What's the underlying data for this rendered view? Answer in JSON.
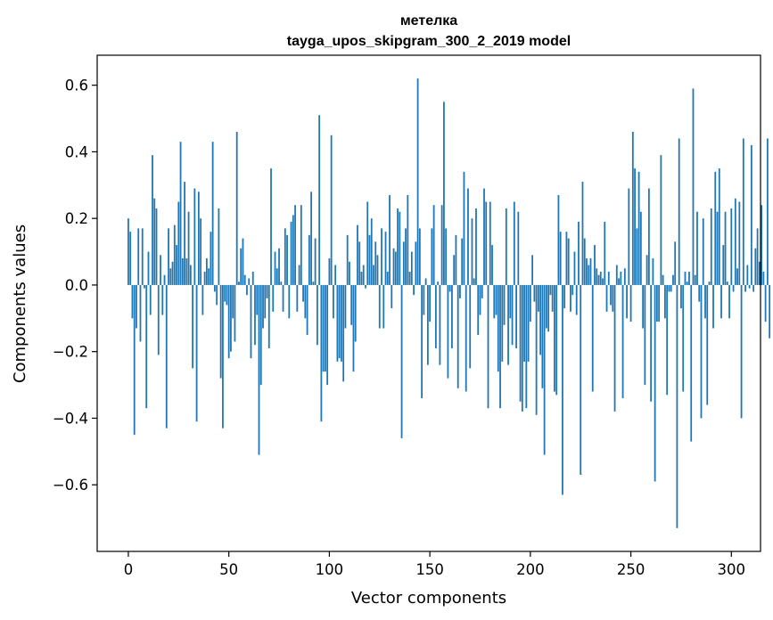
{
  "chart_data": {
    "type": "bar",
    "title": "метелка",
    "subtitle": "tayga_upos_skipgram_300_2_2019 model",
    "xlabel": "Vector components",
    "ylabel": "Components values",
    "xlim": [
      -15.5,
      314.5
    ],
    "ylim": [
      -0.8,
      0.69
    ],
    "x_ticks": [
      0,
      50,
      100,
      150,
      200,
      250,
      300
    ],
    "y_ticks": [
      -0.6,
      -0.4,
      -0.2,
      0.0,
      0.2,
      0.4,
      0.6
    ],
    "y_tick_labels": [
      "−0.6",
      "−0.4",
      "−0.2",
      "0.0",
      "0.2",
      "0.4",
      "0.6"
    ],
    "grid": false,
    "bar_color": "#1f77b4",
    "values": [
      0.2,
      0.16,
      -0.1,
      -0.45,
      -0.13,
      0.17,
      -0.17,
      0.17,
      -0.01,
      -0.37,
      0.1,
      -0.09,
      0.39,
      0.26,
      0.23,
      -0.21,
      0.09,
      -0.09,
      0.03,
      -0.43,
      0.17,
      0.05,
      0.07,
      0.18,
      0.12,
      0.25,
      0.43,
      0.08,
      0.31,
      0.08,
      0.22,
      0.06,
      -0.25,
      0.29,
      -0.41,
      0.28,
      0.2,
      -0.09,
      0.04,
      0.08,
      0.05,
      0.16,
      0.43,
      -0.02,
      -0.06,
      0.23,
      -0.28,
      -0.43,
      -0.05,
      -0.06,
      -0.22,
      -0.2,
      -0.1,
      -0.17,
      0.46,
      0.01,
      0.11,
      0.14,
      0.03,
      -0.03,
      0.02,
      -0.22,
      0.04,
      -0.18,
      -0.09,
      -0.51,
      -0.3,
      -0.13,
      -0.1,
      -0.04,
      -0.19,
      0.35,
      -0.08,
      0.1,
      0.05,
      0.11,
      0.01,
      -0.08,
      0.17,
      0.15,
      -0.1,
      0.19,
      0.21,
      0.24,
      -0.08,
      0.06,
      0.24,
      -0.05,
      -0.1,
      -0.15,
      0.15,
      0.28,
      0.01,
      0.14,
      -0.18,
      0.51,
      -0.41,
      -0.26,
      -0.26,
      -0.3,
      0.08,
      0.45,
      -0.1,
      0.06,
      -0.23,
      -0.22,
      -0.23,
      -0.29,
      -0.13,
      0.15,
      0.07,
      -0.12,
      -0.26,
      -0.17,
      0.18,
      0.13,
      0.04,
      0.06,
      -0.01,
      0.25,
      0.15,
      0.2,
      0.06,
      0.13,
      0.09,
      -0.13,
      0.17,
      -0.13,
      0.16,
      0.04,
      0.27,
      -0.07,
      0.11,
      0.1,
      0.23,
      0.22,
      -0.46,
      0.13,
      0.17,
      0.27,
      0.04,
      0.1,
      -0.03,
      0.13,
      0.62,
      0.17,
      -0.34,
      -0.09,
      0.02,
      -0.24,
      -0.11,
      0.17,
      0.24,
      -0.19,
      0.01,
      -0.24,
      0.24,
      0.55,
      0.17,
      -0.28,
      -0.02,
      -0.19,
      0.09,
      0.15,
      -0.31,
      -0.04,
      0.14,
      0.34,
      -0.32,
      0.29,
      -0.25,
      0.2,
      0.02,
      0.23,
      -0.15,
      -0.09,
      -0.04,
      0.29,
      0.25,
      -0.37,
      0.25,
      0.12,
      -0.1,
      -0.09,
      -0.26,
      -0.37,
      -0.23,
      -0.12,
      0.23,
      -0.24,
      -0.1,
      -0.18,
      0.25,
      -0.19,
      0.22,
      -0.35,
      -0.38,
      -0.23,
      -0.37,
      -0.23,
      -0.11,
      0.09,
      -0.05,
      -0.39,
      -0.08,
      -0.21,
      -0.31,
      -0.51,
      -0.13,
      -0.14,
      -0.03,
      -0.08,
      -0.32,
      -0.33,
      0.27,
      0.16,
      -0.63,
      -0.07,
      0.16,
      0.14,
      -0.08,
      -0.03,
      0.1,
      -0.09,
      0.19,
      -0.57,
      0.31,
      0.14,
      0.08,
      0.06,
      0.08,
      -0.32,
      0.12,
      0.05,
      0.03,
      0.04,
      0.02,
      0.19,
      -0.08,
      0.04,
      -0.06,
      -0.08,
      -0.38,
      0.06,
      0.02,
      0.04,
      -0.34,
      0.05,
      -0.1,
      0.29,
      -0.11,
      0.46,
      0.35,
      0.17,
      0.34,
      0.22,
      -0.13,
      -0.3,
      0.09,
      0.29,
      -0.35,
      0.08,
      -0.59,
      -0.11,
      -0.11,
      0.39,
      0.03,
      -0.1,
      -0.33,
      -0.02,
      -0.02,
      0.03,
      0.13,
      -0.73,
      0.44,
      -0.07,
      -0.32,
      0.04,
      0.01,
      0.04,
      -0.47,
      0.59,
      0.03,
      0.22,
      -0.05,
      -0.4,
      0.2,
      -0.1,
      -0.36,
      0.01,
      0.23,
      -0.13,
      0.34,
      0.22,
      0.35,
      -0.1,
      0.12,
      0.22,
      0.01,
      -0.1,
      0.23,
      -0.02,
      0.26,
      0.05,
      0.25,
      -0.4,
      0.44,
      -0.02,
      0.06,
      -0.01,
      0.42,
      -0.02,
      0.11,
      0.17,
      0.07,
      0.24,
      0.04,
      -0.11,
      0.44,
      -0.16
    ]
  }
}
